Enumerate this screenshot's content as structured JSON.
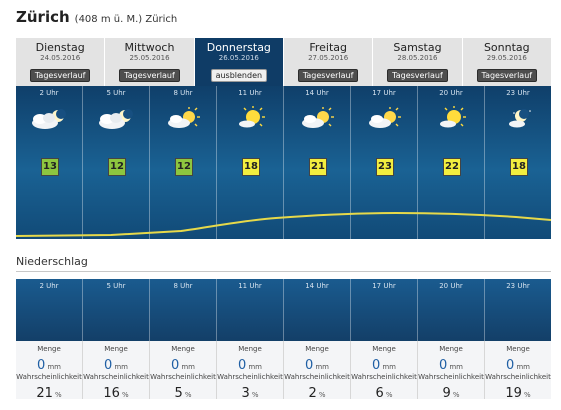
{
  "header": {
    "city": "Zürich",
    "subtitle": "(408 m ü. M.) Zürich"
  },
  "days": [
    {
      "name": "Dienstag",
      "date": "24.05.2016",
      "button": "Tagesverlauf",
      "active": false
    },
    {
      "name": "Mittwoch",
      "date": "25.05.2016",
      "button": "Tagesverlauf",
      "active": false
    },
    {
      "name": "Donnerstag",
      "date": "26.05.2016",
      "button": "ausblenden",
      "active": true
    },
    {
      "name": "Freitag",
      "date": "27.05.2016",
      "button": "Tagesverlauf",
      "active": false
    },
    {
      "name": "Samstag",
      "date": "28.05.2016",
      "button": "Tagesverlauf",
      "active": false
    },
    {
      "name": "Sonntag",
      "date": "29.05.2016",
      "button": "Tagesverlauf",
      "active": false
    }
  ],
  "forecast": [
    {
      "time": "2 Uhr",
      "icon": "cloudy-night-moon-icon",
      "temp": "13",
      "color": "#8ec63f"
    },
    {
      "time": "5 Uhr",
      "icon": "cloudy-night-moon-icon",
      "temp": "12",
      "color": "#8ec63f"
    },
    {
      "time": "8 Uhr",
      "icon": "partly-sunny-icon",
      "temp": "12",
      "color": "#8ec63f"
    },
    {
      "time": "11 Uhr",
      "icon": "mostly-sunny-icon",
      "temp": "18",
      "color": "#f3ee3f"
    },
    {
      "time": "14 Uhr",
      "icon": "partly-sunny-icon",
      "temp": "21",
      "color": "#f3ee3f"
    },
    {
      "time": "17 Uhr",
      "icon": "partly-sunny-icon",
      "temp": "23",
      "color": "#f3ee3f"
    },
    {
      "time": "20 Uhr",
      "icon": "mostly-sunny-icon",
      "temp": "22",
      "color": "#f3ee3f"
    },
    {
      "time": "23 Uhr",
      "icon": "partly-cloudy-night-icon",
      "temp": "18",
      "color": "#f3ee3f"
    }
  ],
  "precipitation": {
    "title": "Niederschlag",
    "amount_label": "Menge",
    "probability_label": "Wahrscheinlichkeit",
    "unit": "mm",
    "pct_unit": "%",
    "slots": [
      {
        "time": "2 Uhr",
        "amount": "0",
        "probability": "21"
      },
      {
        "time": "5 Uhr",
        "amount": "0",
        "probability": "16"
      },
      {
        "time": "8 Uhr",
        "amount": "0",
        "probability": "5"
      },
      {
        "time": "11 Uhr",
        "amount": "0",
        "probability": "3"
      },
      {
        "time": "14 Uhr",
        "amount": "0",
        "probability": "2"
      },
      {
        "time": "17 Uhr",
        "amount": "0",
        "probability": "6"
      },
      {
        "time": "20 Uhr",
        "amount": "0",
        "probability": "9"
      },
      {
        "time": "23 Uhr",
        "amount": "0",
        "probability": "19"
      }
    ]
  },
  "colors": {
    "curve": "#e6d94a",
    "panel": "#0f3f6a",
    "active_day": "#0f3c66"
  }
}
